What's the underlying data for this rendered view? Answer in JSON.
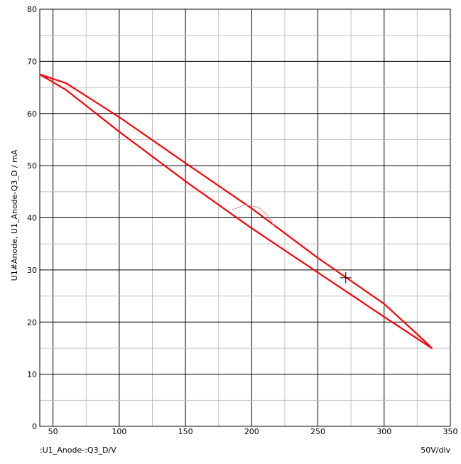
{
  "chart_data": {
    "type": "line",
    "ylabel": "U1#Anode, U1_Anode-Q3_D / mA",
    "xlabel": ":U1_Anode-:Q3_D/V",
    "scale_label": "50V/div",
    "xlim": [
      40,
      350
    ],
    "ylim": [
      0,
      80
    ],
    "x_ticks": [
      50,
      100,
      150,
      200,
      250,
      300,
      350
    ],
    "y_ticks": [
      0,
      10,
      20,
      30,
      40,
      50,
      60,
      70,
      80
    ],
    "grid": true,
    "series": [
      {
        "color": "#ff0000",
        "x": [
          40,
          60,
          100,
          150,
          200,
          250,
          300,
          330,
          336,
          330,
          300,
          250,
          200,
          150,
          100,
          60,
          40
        ],
        "y": [
          67.5,
          64.5,
          56.5,
          47,
          38,
          29.5,
          21,
          16,
          15,
          16.5,
          23.5,
          32.3,
          41.8,
          50.5,
          59.3,
          65.8,
          67.5
        ]
      },
      {
        "color": "#d09090",
        "x": [
          185,
          195,
          205,
          212,
          218
        ],
        "y": [
          41.5,
          42.5,
          42,
          40.5,
          38
        ]
      }
    ],
    "cursor": {
      "x": 271,
      "y": 28.5
    }
  }
}
